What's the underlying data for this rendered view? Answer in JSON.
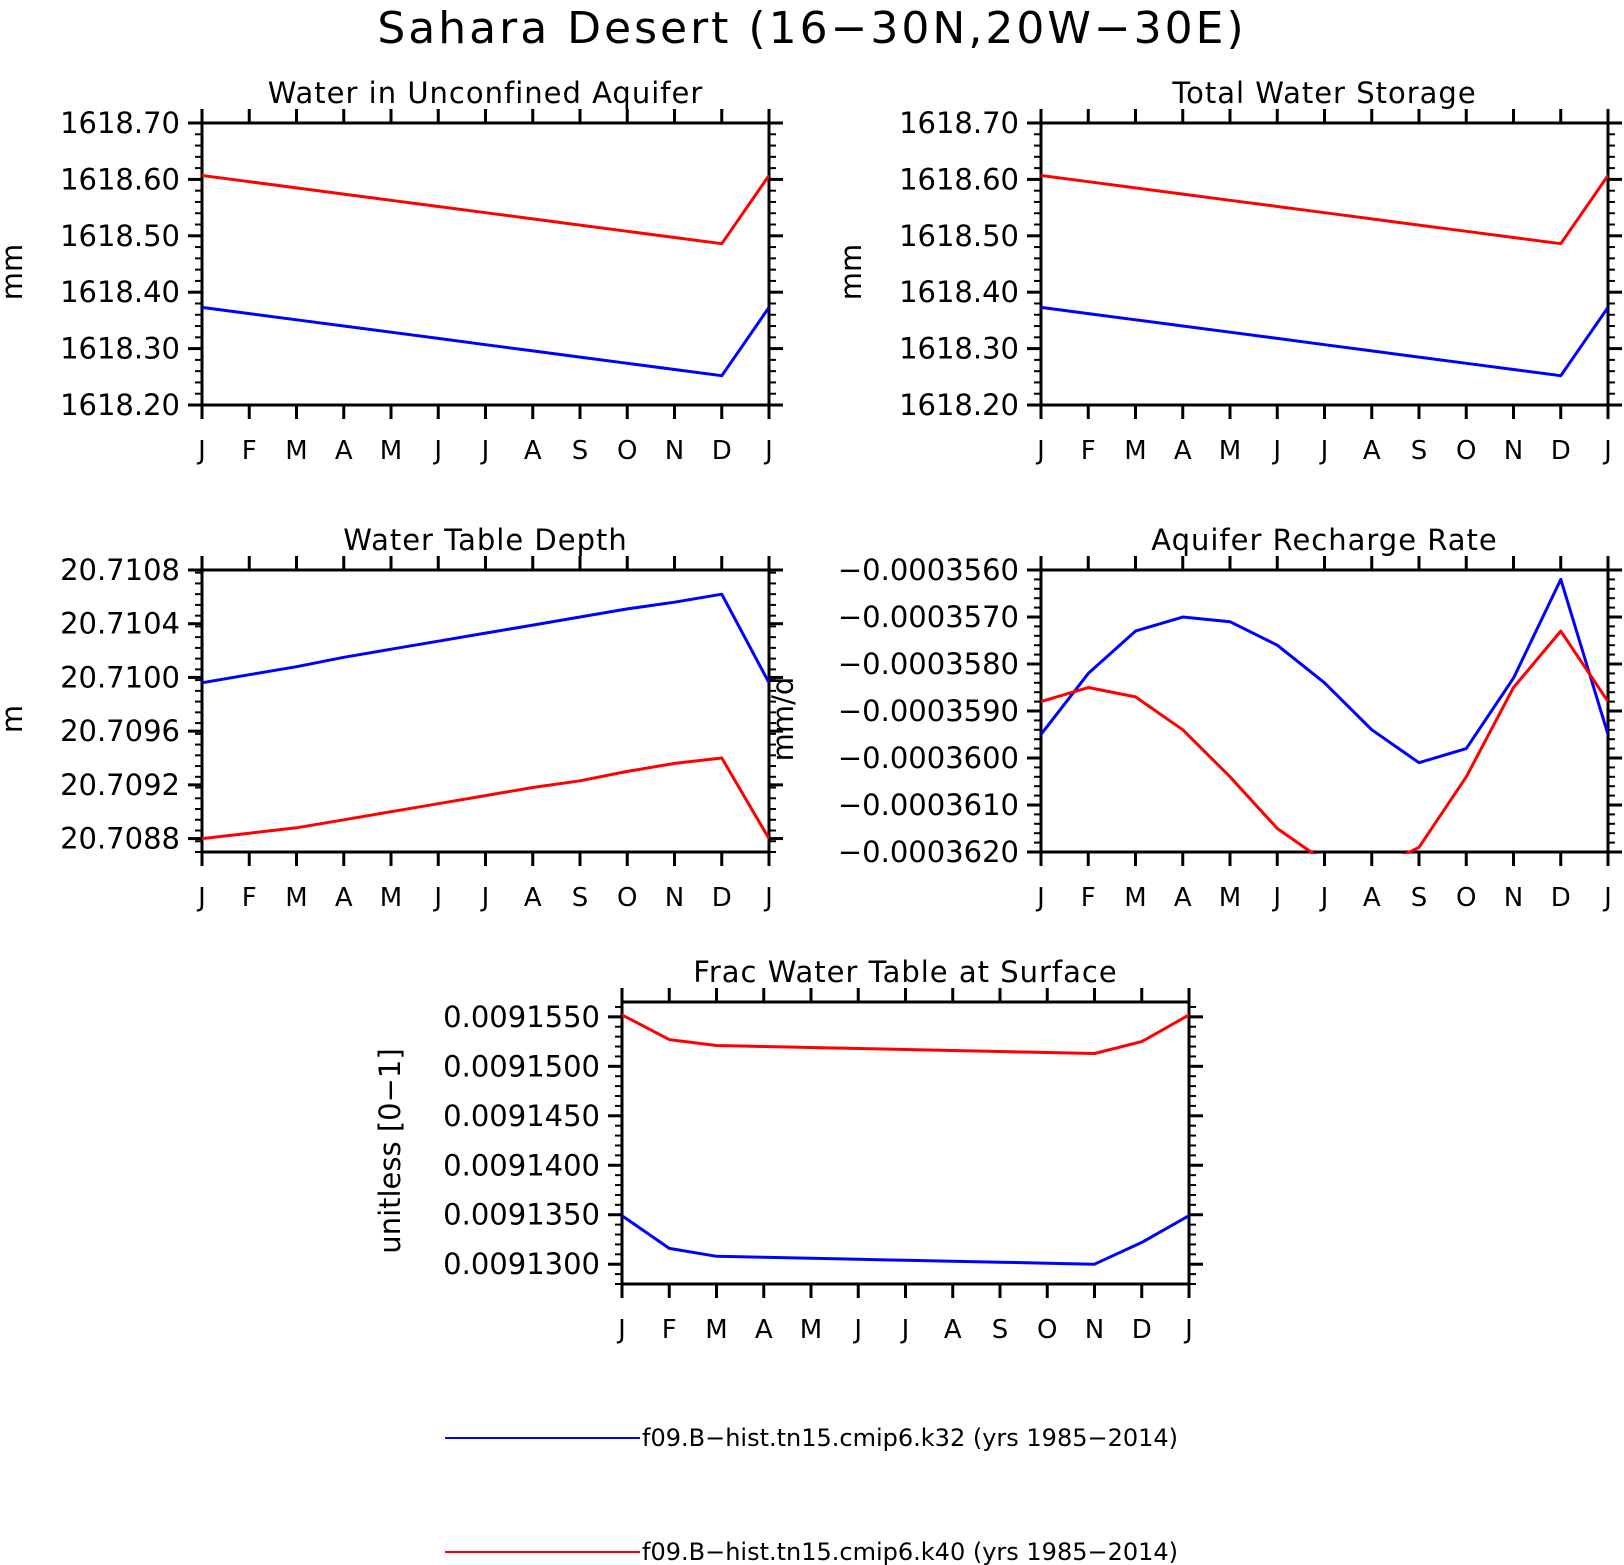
{
  "title": "Sahara Desert (16−30N,20W−30E)",
  "colors": {
    "series_1": "#0000ff",
    "series_2": "#ff0000",
    "axis": "#000000"
  },
  "legend": {
    "entries": [
      {
        "label": "f09.B−hist.tn15.cmip6.k32 (yrs 1985−2014)",
        "color": "#0000ff"
      },
      {
        "label": "f09.B−hist.tn15.cmip6.k40 (yrs 1985−2014)",
        "color": "#ff0000"
      }
    ]
  },
  "chart_data": [
    {
      "type": "line",
      "title": "Water in Unconfined Aquifer",
      "ylabel": "mm",
      "categories": [
        "J",
        "F",
        "M",
        "A",
        "M",
        "J",
        "J",
        "A",
        "S",
        "O",
        "N",
        "D",
        "J"
      ],
      "ylim": [
        1618.2,
        1618.7
      ],
      "yticks": [
        "1618.70",
        "1618.60",
        "1618.50",
        "1618.40",
        "1618.30",
        "1618.20"
      ],
      "series": [
        {
          "name": "f09.B−hist.tn15.cmip6.k32 (yrs 1985−2014)",
          "color": "#0000ff",
          "values": [
            1618.373,
            1618.362,
            1618.351,
            1618.34,
            1618.329,
            1618.318,
            1618.307,
            1618.296,
            1618.285,
            1618.274,
            1618.263,
            1618.252,
            1618.373
          ]
        },
        {
          "name": "f09.B−hist.tn15.cmip6.k40 (yrs 1985−2014)",
          "color": "#ff0000",
          "values": [
            1618.607,
            1618.596,
            1618.585,
            1618.574,
            1618.563,
            1618.552,
            1618.541,
            1618.53,
            1618.519,
            1618.508,
            1618.497,
            1618.486,
            1618.607
          ]
        }
      ]
    },
    {
      "type": "line",
      "title": "Total Water Storage",
      "ylabel": "mm",
      "categories": [
        "J",
        "F",
        "M",
        "A",
        "M",
        "J",
        "J",
        "A",
        "S",
        "O",
        "N",
        "D",
        "J"
      ],
      "ylim": [
        1618.2,
        1618.7
      ],
      "yticks": [
        "1618.70",
        "1618.60",
        "1618.50",
        "1618.40",
        "1618.30",
        "1618.20"
      ],
      "series": [
        {
          "name": "f09.B−hist.tn15.cmip6.k32 (yrs 1985−2014)",
          "color": "#0000ff",
          "values": [
            1618.373,
            1618.362,
            1618.351,
            1618.34,
            1618.329,
            1618.318,
            1618.307,
            1618.296,
            1618.285,
            1618.274,
            1618.263,
            1618.252,
            1618.373
          ]
        },
        {
          "name": "f09.B−hist.tn15.cmip6.k40 (yrs 1985−2014)",
          "color": "#ff0000",
          "values": [
            1618.607,
            1618.596,
            1618.585,
            1618.574,
            1618.563,
            1618.552,
            1618.541,
            1618.53,
            1618.519,
            1618.508,
            1618.497,
            1618.486,
            1618.607
          ]
        }
      ]
    },
    {
      "type": "line",
      "title": "Water Table Depth",
      "ylabel": "m",
      "categories": [
        "J",
        "F",
        "M",
        "A",
        "M",
        "J",
        "J",
        "A",
        "S",
        "O",
        "N",
        "D",
        "J"
      ],
      "ylim": [
        20.7087,
        20.7108
      ],
      "yticks": [
        "20.7108",
        "20.7104",
        "20.7100",
        "20.7096",
        "20.7092",
        "20.7088"
      ],
      "series": [
        {
          "name": "f09.B−hist.tn15.cmip6.k32 (yrs 1985−2014)",
          "color": "#0000ff",
          "values": [
            20.70996,
            20.71002,
            20.71008,
            20.71015,
            20.71021,
            20.71027,
            20.71033,
            20.71039,
            20.71045,
            20.71051,
            20.71056,
            20.71062,
            20.70996
          ]
        },
        {
          "name": "f09.B−hist.tn15.cmip6.k40 (yrs 1985−2014)",
          "color": "#ff0000",
          "values": [
            20.7088,
            20.70884,
            20.70888,
            20.70894,
            20.709,
            20.70906,
            20.70912,
            20.70918,
            20.70923,
            20.7093,
            20.70936,
            20.7094,
            20.7088
          ]
        }
      ]
    },
    {
      "type": "line",
      "title": "Aquifer Recharge Rate",
      "ylabel": "mm/d",
      "categories": [
        "J",
        "F",
        "M",
        "A",
        "M",
        "J",
        "J",
        "A",
        "S",
        "O",
        "N",
        "D",
        "J"
      ],
      "ylim": [
        -0.000362,
        -0.000356
      ],
      "yticks": [
        "−0.0003560",
        "−0.0003570",
        "−0.0003580",
        "−0.0003590",
        "−0.0003600",
        "−0.0003610",
        "−0.0003620"
      ],
      "series": [
        {
          "name": "f09.B−hist.tn15.cmip6.k32 (yrs 1985−2014)",
          "color": "#0000ff",
          "values": [
            -0.0003595,
            -0.0003582,
            -0.0003573,
            -0.000357,
            -0.0003571,
            -0.0003576,
            -0.0003584,
            -0.0003594,
            -0.0003601,
            -0.0003598,
            -0.0003583,
            -0.0003562,
            -0.0003595
          ]
        },
        {
          "name": "f09.B−hist.tn15.cmip6.k40 (yrs 1985−2014)",
          "color": "#ff0000",
          "values": [
            -0.0003588,
            -0.0003585,
            -0.0003587,
            -0.0003594,
            -0.0003604,
            -0.0003615,
            -0.0003622,
            -0.0003624,
            -0.0003619,
            -0.0003604,
            -0.0003585,
            -0.0003573,
            -0.0003588
          ]
        }
      ]
    },
    {
      "type": "line",
      "title": "Frac Water Table at Surface",
      "ylabel": "unitless [0−1]",
      "categories": [
        "J",
        "F",
        "M",
        "A",
        "M",
        "J",
        "J",
        "A",
        "S",
        "O",
        "N",
        "D",
        "J"
      ],
      "ylim": [
        0.009128,
        0.0091565
      ],
      "yticks": [
        "0.0091550",
        "0.0091500",
        "0.0091450",
        "0.0091400",
        "0.0091350",
        "0.0091300"
      ],
      "series": [
        {
          "name": "f09.B−hist.tn15.cmip6.k32 (yrs 1985−2014)",
          "color": "#0000ff",
          "values": [
            0.0091349,
            0.0091316,
            0.0091308,
            0.0091307,
            0.0091306,
            0.0091305,
            0.0091304,
            0.0091303,
            0.0091302,
            0.0091301,
            0.00913,
            0.0091322,
            0.0091349
          ]
        },
        {
          "name": "f09.B−hist.tn15.cmip6.k40 (yrs 1985−2014)",
          "color": "#ff0000",
          "values": [
            0.0091552,
            0.0091527,
            0.0091521,
            0.009152,
            0.0091519,
            0.0091518,
            0.0091517,
            0.0091516,
            0.0091515,
            0.0091514,
            0.0091513,
            0.0091525,
            0.0091552
          ]
        }
      ]
    }
  ]
}
